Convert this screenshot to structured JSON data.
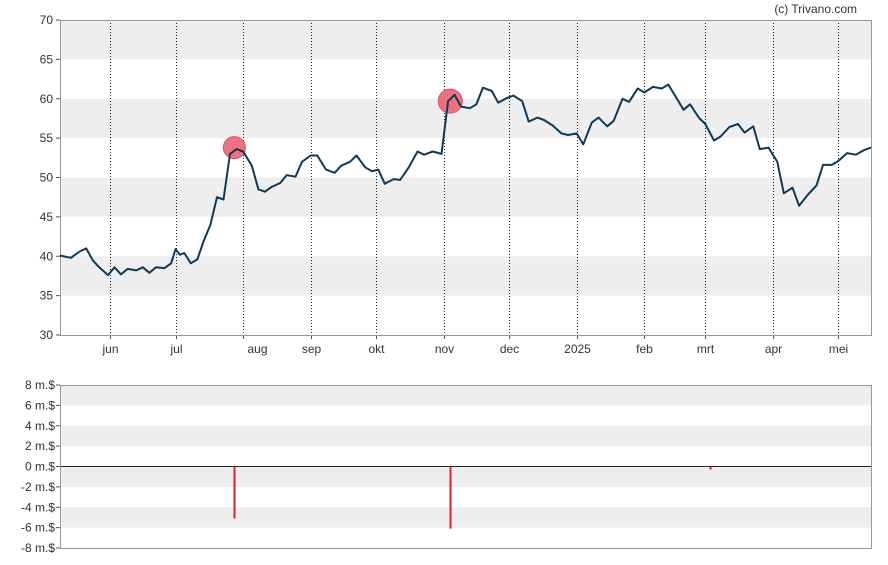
{
  "credit": "(c) Trivano.com",
  "colors": {
    "price_line": "#0d3a5a",
    "band": "#eeeeee",
    "marker_fill": "#f07080",
    "volume_bar": "#e8192c"
  },
  "chart_data": [
    {
      "type": "line",
      "x_tick_labels": [
        "jun",
        "jul",
        "aug",
        "sep",
        "okt",
        "nov",
        "dec",
        "2025",
        "feb",
        "mrt",
        "apr",
        "mei"
      ],
      "ylim": [
        30,
        70
      ],
      "y_ticks": [
        30,
        35,
        40,
        45,
        50,
        55,
        60,
        65,
        70
      ],
      "grid": "alternating horizontal bands, dotted vertical lines at month starts",
      "x_start": "2024-05-09",
      "x_end": "2025-05-16",
      "series": [
        {
          "values": [
            [
              "2024-05-09",
              40.1
            ],
            [
              "2024-05-14",
              39.8
            ],
            [
              "2024-05-18",
              40.6
            ],
            [
              "2024-05-21",
              41.0
            ],
            [
              "2024-05-24",
              39.5
            ],
            [
              "2024-05-27",
              38.6
            ],
            [
              "2024-05-31",
              37.6
            ],
            [
              "2024-06-03",
              38.6
            ],
            [
              "2024-06-06",
              37.7
            ],
            [
              "2024-06-09",
              38.4
            ],
            [
              "2024-06-13",
              38.2
            ],
            [
              "2024-06-16",
              38.6
            ],
            [
              "2024-06-19",
              37.9
            ],
            [
              "2024-06-22",
              38.6
            ],
            [
              "2024-06-26",
              38.5
            ],
            [
              "2024-06-29",
              39.1
            ],
            [
              "2024-07-01",
              40.9
            ],
            [
              "2024-07-03",
              40.2
            ],
            [
              "2024-07-05",
              40.4
            ],
            [
              "2024-07-08",
              39.1
            ],
            [
              "2024-07-11",
              39.6
            ],
            [
              "2024-07-14",
              42.0
            ],
            [
              "2024-07-17",
              44.0
            ],
            [
              "2024-07-20",
              47.5
            ],
            [
              "2024-07-23",
              47.2
            ],
            [
              "2024-07-26",
              53.0
            ],
            [
              "2024-07-29",
              53.6
            ],
            [
              "2024-08-01",
              53.3
            ],
            [
              "2024-08-05",
              51.5
            ],
            [
              "2024-08-08",
              48.5
            ],
            [
              "2024-08-11",
              48.2
            ],
            [
              "2024-08-14",
              48.8
            ],
            [
              "2024-08-18",
              49.3
            ],
            [
              "2024-08-21",
              50.3
            ],
            [
              "2024-08-25",
              50.1
            ],
            [
              "2024-08-28",
              52.0
            ],
            [
              "2024-09-01",
              52.8
            ],
            [
              "2024-09-04",
              52.8
            ],
            [
              "2024-09-08",
              51.0
            ],
            [
              "2024-09-12",
              50.6
            ],
            [
              "2024-09-15",
              51.5
            ],
            [
              "2024-09-19",
              52.0
            ],
            [
              "2024-09-22",
              52.8
            ],
            [
              "2024-09-26",
              51.3
            ],
            [
              "2024-09-29",
              50.8
            ],
            [
              "2024-10-02",
              51.0
            ],
            [
              "2024-10-05",
              49.2
            ],
            [
              "2024-10-09",
              49.8
            ],
            [
              "2024-10-12",
              49.7
            ],
            [
              "2024-10-16",
              51.3
            ],
            [
              "2024-10-20",
              53.3
            ],
            [
              "2024-10-23",
              52.9
            ],
            [
              "2024-10-27",
              53.3
            ],
            [
              "2024-10-31",
              53.0
            ],
            [
              "2024-11-03",
              59.7
            ],
            [
              "2024-11-06",
              60.5
            ],
            [
              "2024-11-09",
              59.0
            ],
            [
              "2024-11-13",
              58.8
            ],
            [
              "2024-11-16",
              59.3
            ],
            [
              "2024-11-19",
              61.4
            ],
            [
              "2024-11-23",
              61.0
            ],
            [
              "2024-11-26",
              59.5
            ],
            [
              "2024-11-30",
              60.1
            ],
            [
              "2024-12-03",
              60.4
            ],
            [
              "2024-12-07",
              59.7
            ],
            [
              "2024-12-10",
              57.1
            ],
            [
              "2024-12-14",
              57.6
            ],
            [
              "2024-12-17",
              57.3
            ],
            [
              "2024-12-21",
              56.6
            ],
            [
              "2024-12-25",
              55.6
            ],
            [
              "2024-12-28",
              55.4
            ],
            [
              "2025-01-01",
              55.6
            ],
            [
              "2025-01-04",
              54.2
            ],
            [
              "2025-01-08",
              57.0
            ],
            [
              "2025-01-11",
              57.6
            ],
            [
              "2025-01-15",
              56.5
            ],
            [
              "2025-01-18",
              57.2
            ],
            [
              "2025-01-22",
              60.0
            ],
            [
              "2025-01-25",
              59.6
            ],
            [
              "2025-01-29",
              61.3
            ],
            [
              "2025-02-01",
              60.8
            ],
            [
              "2025-02-05",
              61.5
            ],
            [
              "2025-02-09",
              61.3
            ],
            [
              "2025-02-12",
              61.8
            ],
            [
              "2025-02-16",
              60.0
            ],
            [
              "2025-02-19",
              58.6
            ],
            [
              "2025-02-22",
              59.3
            ],
            [
              "2025-02-26",
              57.6
            ],
            [
              "2025-03-01",
              56.8
            ],
            [
              "2025-03-05",
              54.7
            ],
            [
              "2025-03-08",
              55.2
            ],
            [
              "2025-03-12",
              56.4
            ],
            [
              "2025-03-16",
              56.8
            ],
            [
              "2025-03-19",
              55.7
            ],
            [
              "2025-03-23",
              56.5
            ],
            [
              "2025-03-26",
              53.6
            ],
            [
              "2025-03-30",
              53.8
            ],
            [
              "2025-04-03",
              52.0
            ],
            [
              "2025-04-06",
              48.0
            ],
            [
              "2025-04-10",
              48.7
            ],
            [
              "2025-04-13",
              46.4
            ],
            [
              "2025-04-17",
              47.8
            ],
            [
              "2025-04-21",
              49.0
            ],
            [
              "2025-04-24",
              51.6
            ],
            [
              "2025-04-28",
              51.6
            ],
            [
              "2025-05-01",
              52.1
            ],
            [
              "2025-05-05",
              53.1
            ],
            [
              "2025-05-09",
              52.9
            ],
            [
              "2025-05-13",
              53.5
            ],
            [
              "2025-05-16",
              53.8
            ]
          ]
        }
      ],
      "markers": [
        {
          "x": "2024-07-28",
          "y": 53.8
        },
        {
          "x": "2024-11-04",
          "y": 59.7
        }
      ]
    },
    {
      "type": "bar",
      "ylim": [
        -8,
        8
      ],
      "y_tick_labels": [
        "8 m.$",
        "6 m.$",
        "4 m.$",
        "2 m.$",
        "0 m.$",
        "-2 m.$",
        "-4 m.$",
        "-6 m.$",
        "-8 m.$"
      ],
      "y_ticks": [
        8,
        6,
        4,
        2,
        0,
        -2,
        -4,
        -6,
        -8
      ],
      "x_start": "2024-05-09",
      "x_end": "2025-05-16",
      "bars": [
        {
          "x": "2024-07-28",
          "value": -5.1
        },
        {
          "x": "2024-11-04",
          "value": -6.1
        },
        {
          "x": "2025-03-03",
          "value": -0.3
        }
      ]
    }
  ]
}
